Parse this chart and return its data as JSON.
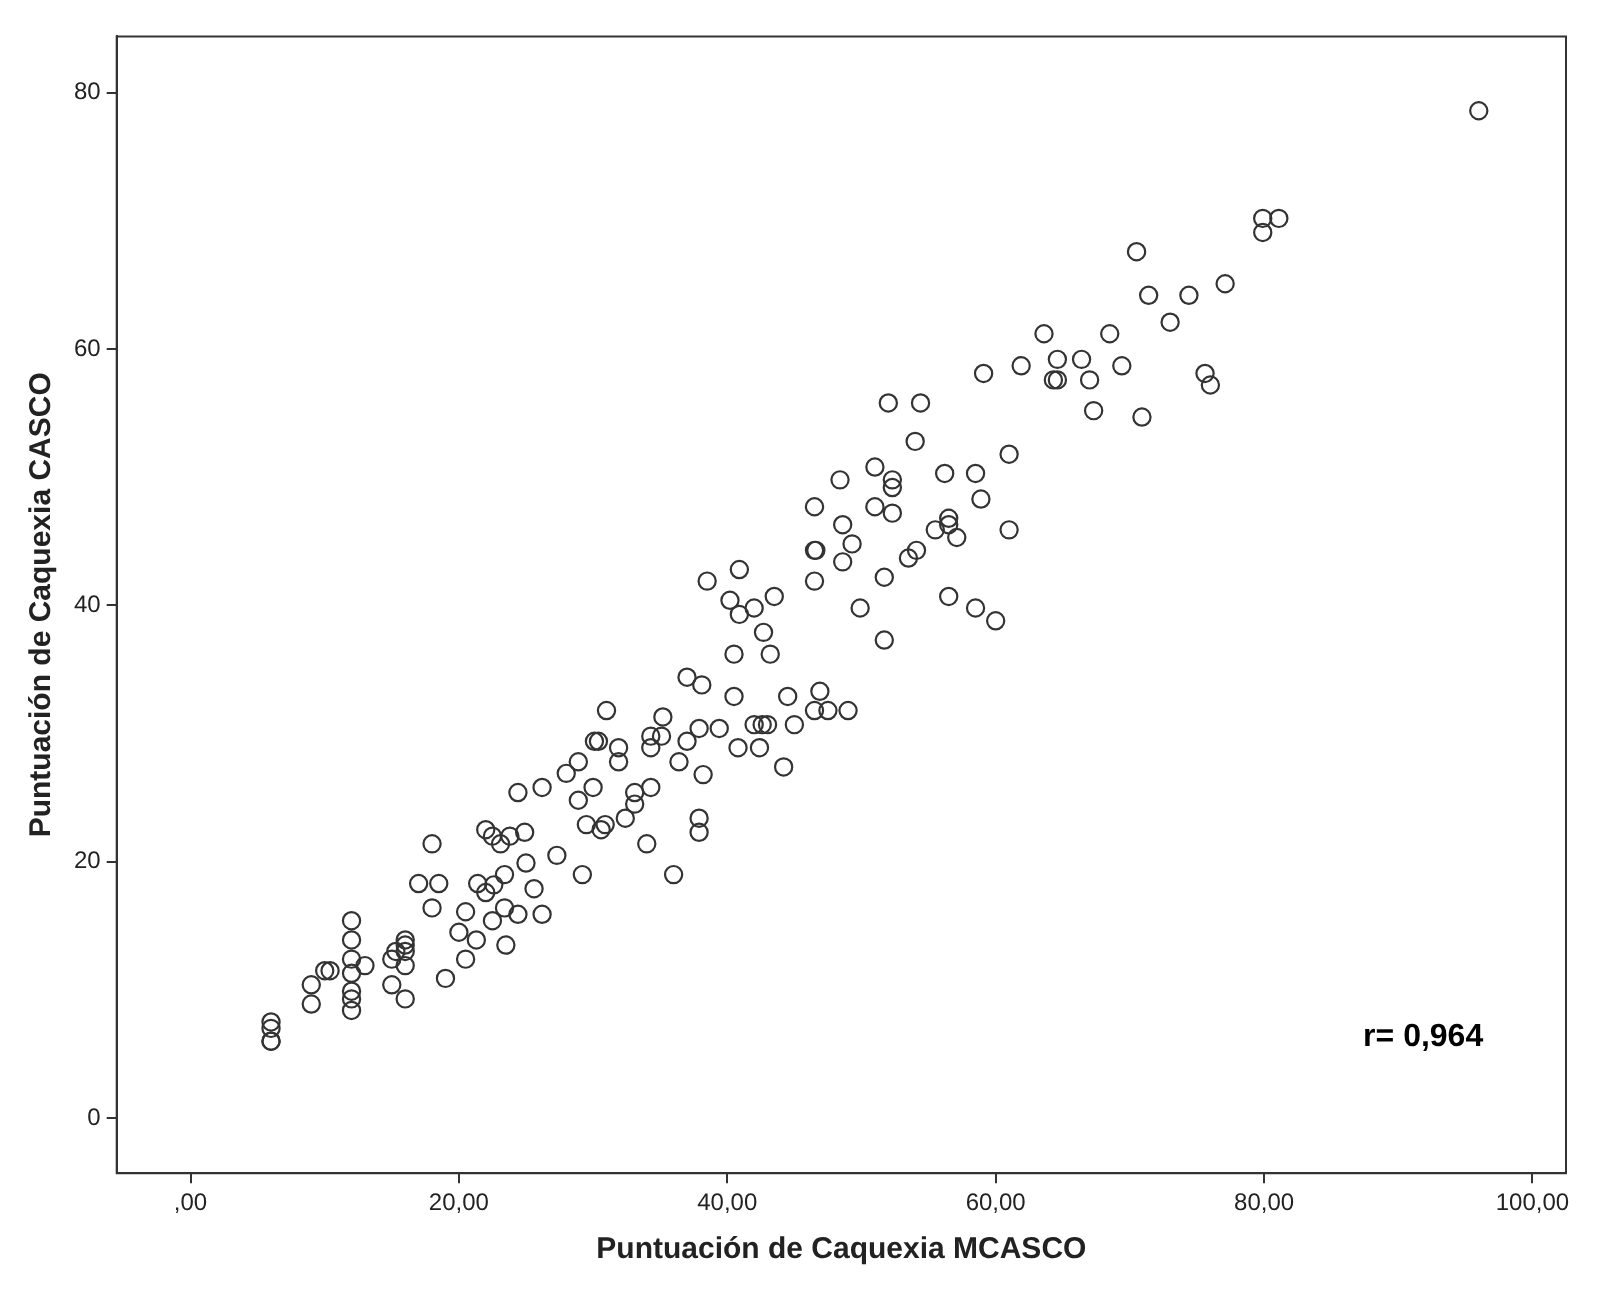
{
  "chart_data": {
    "type": "scatter",
    "xlabel": "Puntuación de Caquexia MCASCO",
    "ylabel": "Puntuación de Caquexia CASCO",
    "annotations": [
      "r= 0,964"
    ],
    "marker": "circle",
    "grid": false,
    "legend": false,
    "xlim": [
      -5.5,
      102.5
    ],
    "ylim": [
      -4.3,
      84.4
    ],
    "xticks": [
      {
        "value": 0,
        "label": ",00"
      },
      {
        "value": 20,
        "label": "20,00"
      },
      {
        "value": 40,
        "label": "40,00"
      },
      {
        "value": 60,
        "label": "60,00"
      },
      {
        "value": 80,
        "label": "80,00"
      },
      {
        "value": 100,
        "label": "100,00"
      }
    ],
    "yticks": [
      0,
      20,
      40,
      60,
      80
    ],
    "series": [
      {
        "color": "#333333",
        "x": [
          6,
          6,
          6,
          6,
          9,
          9,
          10,
          10.4,
          12,
          12,
          12,
          12,
          12,
          12,
          12,
          13,
          15,
          15,
          16,
          16,
          16,
          16,
          16,
          15.3,
          18,
          17,
          18.5,
          18,
          19,
          20.5,
          20,
          21.3,
          20.5,
          22,
          22.5,
          23.1,
          23.8,
          24.9,
          21.4,
          22.6,
          23.4,
          22,
          22.5,
          23.4,
          24.4,
          23.5,
          25,
          25.6,
          26.2,
          27.3,
          24.4,
          26.2,
          28,
          28.9,
          30,
          28.9,
          31,
          29.5,
          30.6,
          30.9,
          29.2,
          30.1,
          30.4,
          31.9,
          31.9,
          32.4,
          33.1,
          33.1,
          34.3,
          34,
          36,
          34.3,
          35.1,
          34.3,
          35.2,
          36.4,
          37,
          37.9,
          38.2,
          37.9,
          37.9,
          37,
          38.1,
          39.4,
          40.5,
          40.8,
          42,
          42.6,
          43,
          42.4,
          52,
          54.4,
          54,
          51,
          52.3,
          52.3,
          48.4,
          46.5,
          51,
          52.3,
          48.6,
          49.3,
          46.5,
          46.6,
          48.6,
          46.5,
          51.7,
          53.5,
          54.1,
          56.2,
          58.5,
          58.9,
          61,
          61,
          55.5,
          56.5,
          56.5,
          57.1,
          56.5,
          58.5,
          60,
          49.9,
          51.7,
          38.5,
          40.9,
          40.2,
          40.9,
          42,
          43.5,
          42.7,
          40.5,
          43.2,
          44.5,
          46.9,
          46.5,
          47.5,
          49,
          45,
          44.2,
          96,
          79.9,
          81.1,
          79.9,
          70.5,
          71.4,
          74.4,
          77.1,
          73,
          63.6,
          68.5,
          61.9,
          64.6,
          66.4,
          64.3,
          64.6,
          67,
          69.4,
          59.1,
          75.6,
          76,
          67.3,
          70.9
        ],
        "values": [
          7.5,
          7,
          6,
          6,
          10.4,
          8.9,
          11.5,
          11.5,
          15.4,
          13.9,
          12.4,
          11.3,
          9.9,
          9.3,
          8.4,
          11.9,
          12.4,
          10.4,
          13.9,
          13.5,
          13,
          11.9,
          9.3,
          13,
          21.4,
          18.3,
          18.3,
          16.4,
          10.9,
          16.1,
          14.5,
          13.9,
          12.4,
          22.5,
          22,
          21.4,
          22,
          22.3,
          18.3,
          18.2,
          19,
          17.6,
          15.4,
          16.4,
          15.9,
          13.5,
          19.9,
          17.9,
          15.9,
          20.5,
          25.4,
          25.8,
          26.9,
          27.8,
          25.8,
          24.8,
          31.8,
          22.9,
          22.5,
          22.9,
          19,
          29.4,
          29.4,
          28.9,
          27.8,
          23.4,
          24.5,
          25.4,
          25.8,
          21.4,
          19,
          29.8,
          29.8,
          28.9,
          31.3,
          27.8,
          29.4,
          30.4,
          26.8,
          23.4,
          22.3,
          34.4,
          33.8,
          30.4,
          32.9,
          28.9,
          30.7,
          30.7,
          30.7,
          28.9,
          55.8,
          55.8,
          52.8,
          50.8,
          49.8,
          49.2,
          49.8,
          47.7,
          47.7,
          47.2,
          46.3,
          44.8,
          44.3,
          44.3,
          43.4,
          41.9,
          42.2,
          43.7,
          44.3,
          50.3,
          50.3,
          48.3,
          51.8,
          45.9,
          45.9,
          46.8,
          46.3,
          45.3,
          40.7,
          39.8,
          38.8,
          39.8,
          37.3,
          41.9,
          42.8,
          40.4,
          39.3,
          39.8,
          40.7,
          37.9,
          36.2,
          36.2,
          32.9,
          33.3,
          31.8,
          31.8,
          31.8,
          30.7,
          27.4,
          78.6,
          70.2,
          70.2,
          69.1,
          67.6,
          64.2,
          64.2,
          65.1,
          62.1,
          61.2,
          61.2,
          58.7,
          59.2,
          59.2,
          57.6,
          57.6,
          57.6,
          58.7,
          58.1,
          58.1,
          57.2,
          55.2,
          54.7
        ]
      }
    ]
  }
}
